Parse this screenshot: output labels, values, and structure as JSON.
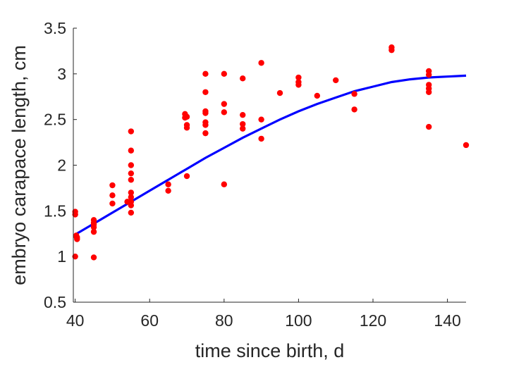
{
  "chart_data": {
    "type": "scatter",
    "title": "",
    "xlabel": "time since birth, d",
    "ylabel": "embryo carapace length, cm",
    "xlim": [
      39.5,
      145
    ],
    "ylim": [
      0.5,
      3.5
    ],
    "xticks": [
      40,
      60,
      80,
      100,
      120,
      140
    ],
    "yticks": [
      0.5,
      1,
      1.5,
      2,
      2.5,
      3,
      3.5
    ],
    "ytick_labels": [
      "0.5",
      "1",
      "1.5",
      "2",
      "2.5",
      "3",
      "3.5"
    ],
    "grid": false,
    "point_color": "#ff0000",
    "line_color": "#0000ff",
    "series": [
      {
        "kind": "points",
        "x": [
          40,
          40,
          40,
          40.3,
          40.3,
          40.5,
          40.5,
          45,
          45,
          45,
          45,
          45,
          45,
          50,
          50,
          50,
          54,
          55,
          55,
          55,
          55,
          55,
          55,
          55,
          55,
          55,
          55,
          65,
          65,
          69.5,
          69.5,
          70,
          70,
          70,
          70,
          75,
          75,
          75,
          75,
          75,
          75,
          75,
          80,
          80,
          80,
          80,
          85,
          85,
          85,
          85,
          90,
          90,
          90,
          95,
          100,
          100,
          100,
          105,
          110,
          115,
          115,
          125,
          125,
          135,
          135,
          135,
          135,
          135,
          135,
          145
        ],
        "y": [
          1.0,
          1.46,
          1.49,
          1.23,
          1.22,
          1.19,
          1.21,
          0.99,
          1.27,
          1.32,
          1.35,
          1.37,
          1.4,
          1.58,
          1.67,
          1.78,
          1.6,
          1.48,
          1.56,
          1.65,
          1.7,
          1.84,
          1.91,
          2.0,
          2.16,
          2.37,
          1.6,
          1.79,
          1.72,
          2.52,
          2.56,
          2.41,
          2.44,
          1.88,
          2.53,
          2.35,
          2.44,
          2.47,
          2.57,
          2.59,
          2.8,
          3.0,
          3.0,
          2.67,
          2.58,
          1.79,
          2.55,
          2.45,
          2.4,
          2.95,
          3.12,
          2.5,
          2.29,
          2.79,
          2.88,
          2.91,
          2.96,
          2.76,
          2.93,
          2.78,
          2.61,
          3.26,
          3.29,
          3.03,
          2.99,
          2.88,
          2.84,
          2.8,
          2.42,
          2.22
        ]
      },
      {
        "kind": "line",
        "x": [
          40,
          45,
          50,
          55,
          60,
          65,
          70,
          75,
          80,
          85,
          90,
          95,
          100,
          105,
          110,
          115,
          120,
          125,
          130,
          135,
          140,
          145
        ],
        "y": [
          1.24,
          1.36,
          1.48,
          1.6,
          1.72,
          1.84,
          1.96,
          2.08,
          2.19,
          2.3,
          2.4,
          2.5,
          2.59,
          2.67,
          2.74,
          2.81,
          2.86,
          2.91,
          2.94,
          2.96,
          2.97,
          2.98
        ]
      }
    ]
  }
}
